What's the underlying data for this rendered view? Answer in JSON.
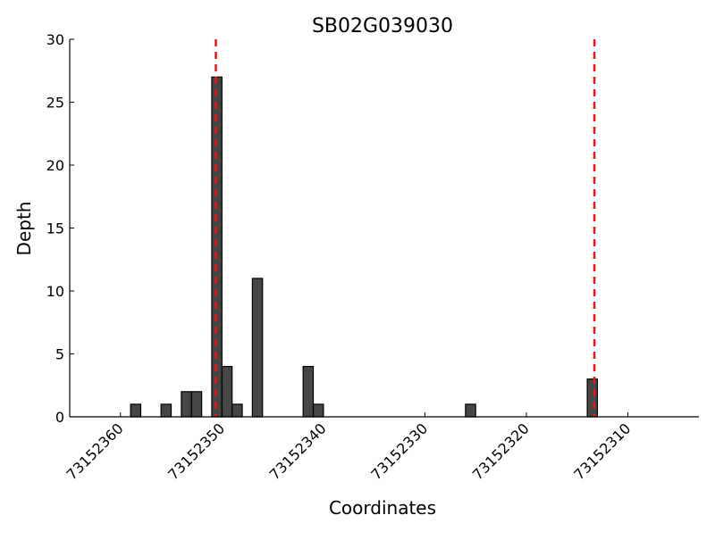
{
  "chart_data": {
    "type": "bar",
    "title": "SB02G039030",
    "xlabel": "Coordinates",
    "ylabel": "Depth",
    "xlim": [
      73152365,
      73152303
    ],
    "ylim": [
      0,
      30
    ],
    "x_inverted": true,
    "bar_width": 1,
    "x_ticks": [
      73152360,
      73152350,
      73152340,
      73152330,
      73152320,
      73152310
    ],
    "y_ticks": [
      0,
      5,
      10,
      15,
      20,
      25,
      30
    ],
    "x": [
      73152358,
      73152355,
      73152353,
      73152352,
      73152350,
      73152349,
      73152348,
      73152346,
      73152341,
      73152340,
      73152325,
      73152313
    ],
    "values": [
      1,
      1,
      2,
      2,
      27,
      4,
      1,
      11,
      4,
      1,
      1,
      3
    ],
    "reference_lines_x": [
      73152350.6,
      73152313.3
    ],
    "grid": false,
    "colors": {
      "bar_fill": "#464646",
      "bar_edge": "#000000",
      "reference_line": "#e8141a",
      "axis": "#000000"
    }
  }
}
